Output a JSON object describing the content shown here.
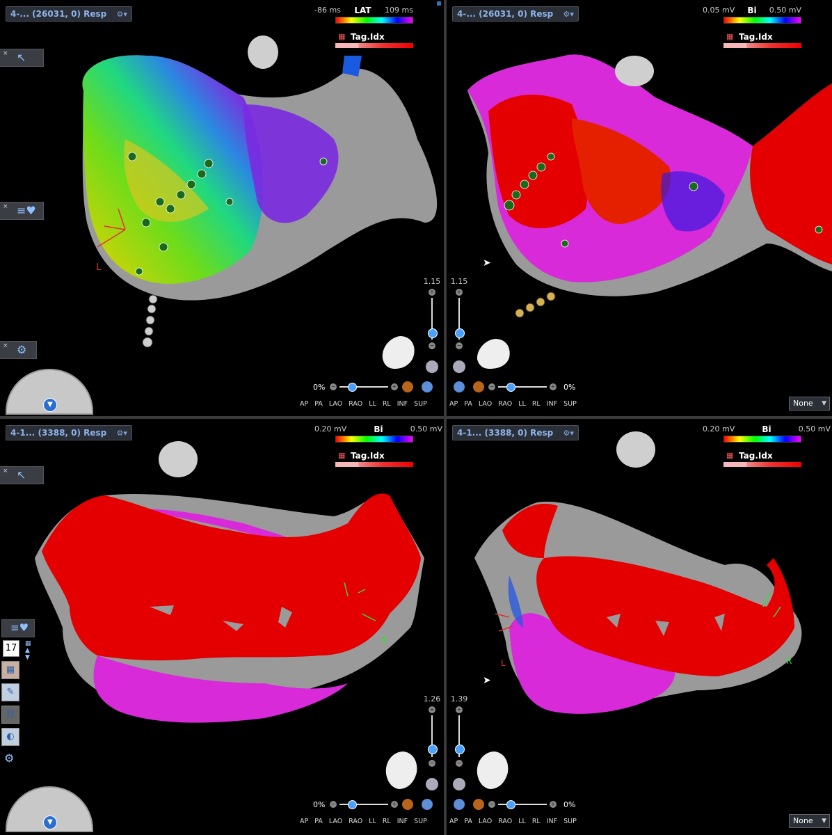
{
  "panels": {
    "tl": {
      "title": "4-... (26031, 0) Resp",
      "scale_min": "-86 ms",
      "scale_label": "LAT",
      "scale_max": "109 ms",
      "tag_label": "Tag.Idx",
      "zoom": "1.15",
      "pct": "0%",
      "orient_label": "L"
    },
    "tr": {
      "title": "4-... (26031, 0) Resp",
      "scale_min": "0.05 mV",
      "scale_label": "Bi",
      "scale_max": "0.50 mV",
      "tag_label": "Tag.Idx",
      "zoom": "1.15",
      "pct": "0%",
      "select": "None"
    },
    "bl": {
      "title": "4-1... (3388, 0) Resp",
      "scale_min": "0.20 mV",
      "scale_label": "Bi",
      "scale_max": "0.50 mV",
      "tag_label": "Tag.Idx",
      "zoom": "1.26",
      "pct": "0%",
      "orient_label": "R",
      "count": "17"
    },
    "br": {
      "title": "4-1... (3388, 0) Resp",
      "scale_min": "0.20 mV",
      "scale_label": "Bi",
      "scale_max": "0.50 mV",
      "tag_label": "Tag.Idx",
      "zoom": "1.39",
      "pct": "0%",
      "orient_label_l": "L",
      "orient_label_r": "R",
      "select": "None"
    }
  },
  "views": [
    "AP",
    "PA",
    "LAO",
    "RAO",
    "LL",
    "RL",
    "INF",
    "SUP"
  ],
  "colors": {
    "lat_gradient": [
      "#ff0000",
      "#ffff00",
      "#00ff00",
      "#00c0ff",
      "#0000ff",
      "#ff00ff"
    ],
    "bi_gradient": [
      "#ff0000",
      "#ffff00",
      "#00ff00",
      "#00ffff",
      "#0000ff",
      "#ff00ff"
    ],
    "panel_bg": "#000000",
    "title_text": "#8db3e8"
  }
}
